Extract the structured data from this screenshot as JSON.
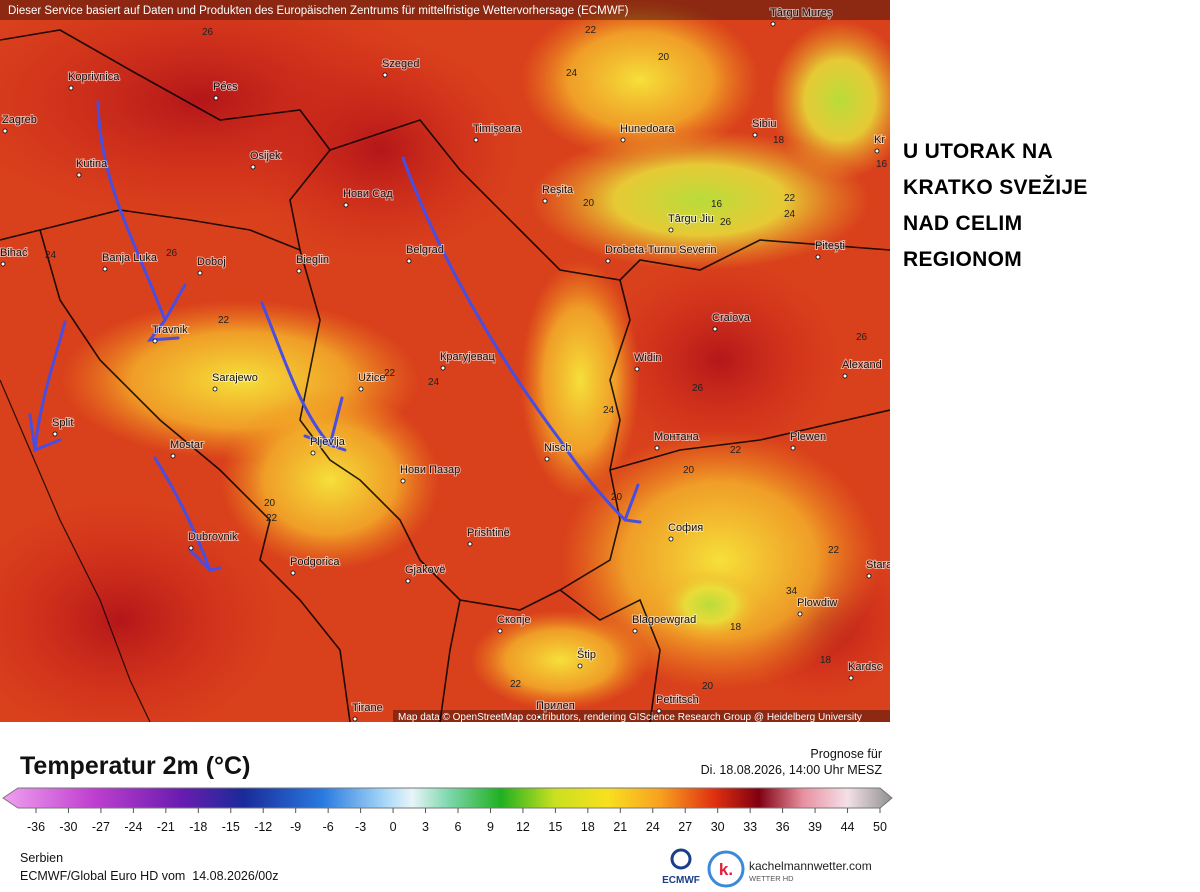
{
  "header": {
    "credit": "Dieser Service basiert auf Daten und Produkten des Europäischen Zentrums für mittelfristige Wettervorhersage (ECMWF)"
  },
  "map": {
    "cities": [
      "Koprivnica",
      "Pécs",
      "Szeged",
      "Zagreb",
      "Osijek",
      "Timișoara",
      "Hunedoara",
      "Sibiu",
      "Târgu Mureș",
      "Kutina",
      "Нови Сад",
      "Reșita",
      "Târgu Jiu",
      "Pitești",
      "Banja Luka",
      "Doboj",
      "Bieglin",
      "Belgrad",
      "Drobeta-Turnu Severin",
      "Bihać",
      "Travnik",
      "Craiova",
      "Sarajewo",
      "Užice",
      "Крагујевац",
      "Widin",
      "Alexand",
      "Split",
      "Mostar",
      "Pljevlja",
      "Nisch",
      "Монтана",
      "Plewen",
      "Нови Пазар",
      "София",
      "Dubrovnik",
      "Prishtinë",
      "Podgorica",
      "Gjakovë",
      "Plowdiw",
      "Скопје",
      "Blagoewgrad",
      "Štip",
      "Kardsc",
      "Tirane",
      "Petritsch",
      "Прилеп",
      "Stara",
      "Kr"
    ],
    "isotherm_labels": [
      26,
      22,
      24,
      20,
      18,
      16,
      26,
      22,
      24,
      20,
      16,
      26,
      24,
      22,
      22,
      24,
      26,
      24,
      22,
      20,
      20,
      20,
      22,
      22,
      34,
      18,
      18,
      20,
      22,
      26
    ],
    "attribution": "Map data © OpenStreetMap contributors, rendering GIScience Research Group @ Heidelberg University"
  },
  "side_note": {
    "lines": [
      "U UTORAK NA",
      "KRATKO SVEŽIJE",
      "NAD CELIM",
      "REGIONOM"
    ]
  },
  "legend": {
    "title": "Temperatur 2m (°C)",
    "ticks": [
      -36,
      -30,
      -27,
      -24,
      -21,
      -18,
      -15,
      -12,
      -9,
      -6,
      -3,
      0,
      3,
      6,
      9,
      12,
      15,
      18,
      21,
      24,
      27,
      30,
      33,
      36,
      39,
      44,
      50
    ]
  },
  "forecast": {
    "label": "Prognose für",
    "time": "Di. 18.08.2026, 14:00 Uhr MESZ"
  },
  "footer": {
    "region": "Serbien",
    "model": "ECMWF/Global Euro HD vom  14.08.2026/00z"
  },
  "logos": {
    "ecmwf": "ECMWF",
    "k": "k.",
    "site": "kachelmannwetter.com",
    "site_sub": "WETTER HD"
  }
}
